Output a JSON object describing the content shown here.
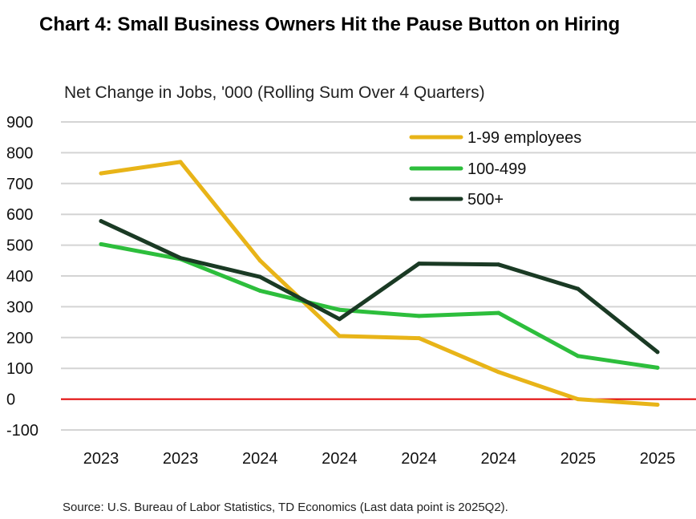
{
  "chart_data": {
    "type": "line",
    "title": "Chart 4: Small Business Owners Hit the Pause Button on Hiring",
    "ylabel": "Net Change in Jobs, '000 (Rolling Sum Over 4 Quarters)",
    "xlabel": "",
    "categories": [
      "2023",
      "2023",
      "2024",
      "2024",
      "2024",
      "2024",
      "2025",
      "2025"
    ],
    "ylim": [
      -100,
      900
    ],
    "yticks": [
      900,
      800,
      700,
      600,
      500,
      400,
      300,
      200,
      100,
      0,
      -100
    ],
    "grid": true,
    "zero_line": true,
    "legend_position": "top-right",
    "series": [
      {
        "name": "1-99 employees",
        "color": "#E8B418",
        "values": [
          733,
          770,
          450,
          205,
          198,
          88,
          0,
          -18
        ]
      },
      {
        "name": "100-499",
        "color": "#2DBE3C",
        "values": [
          503,
          455,
          352,
          290,
          270,
          280,
          140,
          102
        ]
      },
      {
        "name": "500+",
        "color": "#1A3A24",
        "values": [
          578,
          458,
          397,
          260,
          440,
          437,
          358,
          153
        ]
      }
    ],
    "source": "Source: U.S. Bureau of Labor Statistics, TD Economics (Last data point is 2025Q2)."
  },
  "colors": {
    "grid": "#d4d4d4",
    "zero_line": "#e00000"
  }
}
